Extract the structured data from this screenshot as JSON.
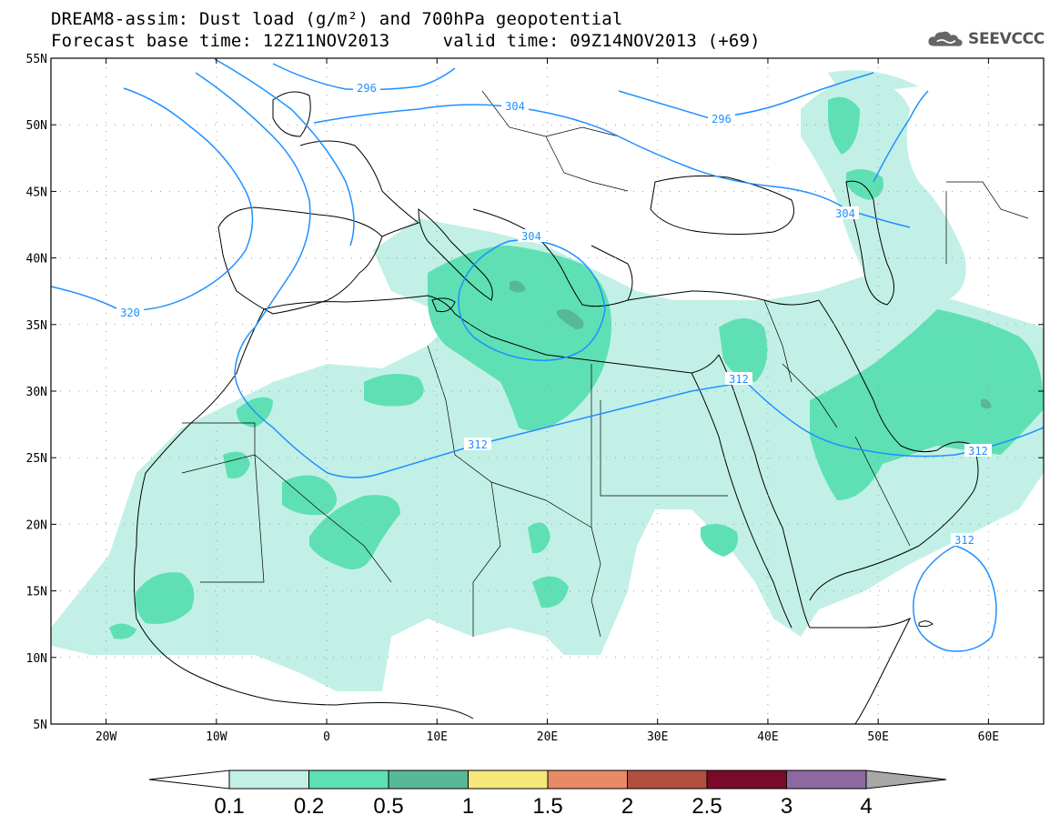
{
  "title": {
    "line1": "DREAM8-assim: Dust load (g/m²) and 700hPa geopotential",
    "line2": "Forecast base time: 12Z11NOV2013     valid time: 09Z14NOV2013 (+69)"
  },
  "logo": {
    "text": "SEEVCCC",
    "icon": "cloud-icon"
  },
  "map": {
    "lat_labels": [
      "55N",
      "50N",
      "45N",
      "40N",
      "35N",
      "30N",
      "25N",
      "20N",
      "15N",
      "10N",
      "5N"
    ],
    "lon_labels": [
      "20W",
      "10W",
      "0",
      "10E",
      "20E",
      "30E",
      "40E",
      "50E",
      "60E"
    ],
    "lat_range": [
      5,
      55
    ],
    "lon_range": [
      -25,
      65
    ],
    "grid": "dotted",
    "contour_labels": [
      "296",
      "296",
      "304",
      "304",
      "304",
      "312",
      "312",
      "312",
      "320",
      "312"
    ]
  },
  "colorbar": {
    "labels": [
      "0.1",
      "0.2",
      "0.5",
      "1",
      "1.5",
      "2",
      "2.5",
      "3",
      "4"
    ],
    "colors": [
      "#ffffff",
      "#c2f0e6",
      "#5ee0b4",
      "#58b896",
      "#f5e77a",
      "#e88a66",
      "#b0503e",
      "#7a0a2a",
      "#8e68a0",
      "#a8a8a8"
    ]
  }
}
